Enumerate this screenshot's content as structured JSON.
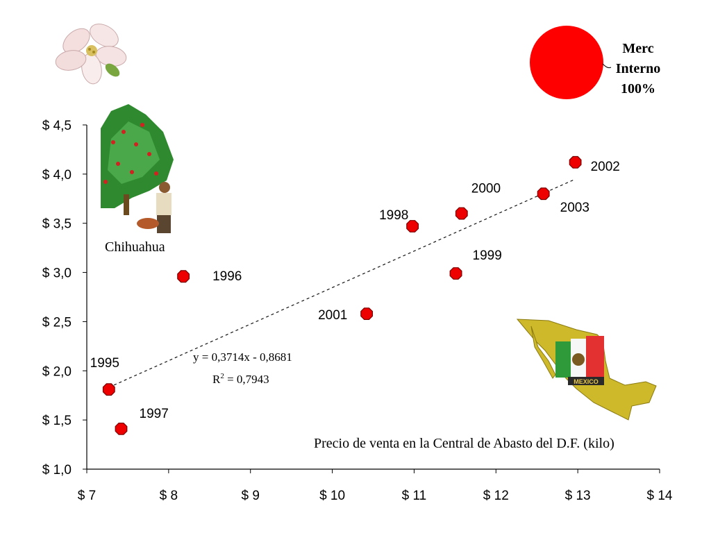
{
  "chart_data": {
    "type": "scatter",
    "title": "Precio de venta en la Central de Abasto del D.F. (kilo)",
    "x_ticks": [
      "$ 7",
      "$ 8",
      "$ 9",
      "$ 10",
      "$ 11",
      "$ 12",
      "$ 13",
      "$ 14"
    ],
    "y_ticks": [
      "$ 1,0",
      "$ 1,5",
      "$ 2,0",
      "$ 2,5",
      "$ 3,0",
      "$ 3,5",
      "$ 4,0",
      "$ 4,5"
    ],
    "xlim": [
      7,
      14
    ],
    "ylim": [
      1.0,
      4.5
    ],
    "grid": false,
    "points": [
      {
        "label": "1995",
        "x": 7.27,
        "y": 1.81
      },
      {
        "label": "1996",
        "x": 8.18,
        "y": 2.96
      },
      {
        "label": "1997",
        "x": 7.42,
        "y": 1.41
      },
      {
        "label": "1998",
        "x": 10.98,
        "y": 3.47
      },
      {
        "label": "1999",
        "x": 11.51,
        "y": 2.99
      },
      {
        "label": "2000",
        "x": 11.58,
        "y": 3.6
      },
      {
        "label": "2001",
        "x": 10.42,
        "y": 2.58
      },
      {
        "label": "2002",
        "x": 12.97,
        "y": 4.12
      },
      {
        "label": "2003",
        "x": 12.58,
        "y": 3.8
      }
    ],
    "trendline": {
      "slope": 0.3714,
      "intercept": -0.8681,
      "x_range": [
        7.27,
        12.97
      ]
    },
    "equation_text": "y = 0,3714x - 0,8681",
    "r2_text": "R",
    "r2_sup": "2",
    "r2_value": " = 0,7943",
    "marker_color": "#ee0000"
  },
  "pie": {
    "label_lines": [
      "Merc",
      "Interno",
      "100%"
    ],
    "color": "#ff0000",
    "values": [
      1.0
    ]
  },
  "images": {
    "tree_label": "Chihuahua",
    "map_badge": "MEXICO"
  }
}
